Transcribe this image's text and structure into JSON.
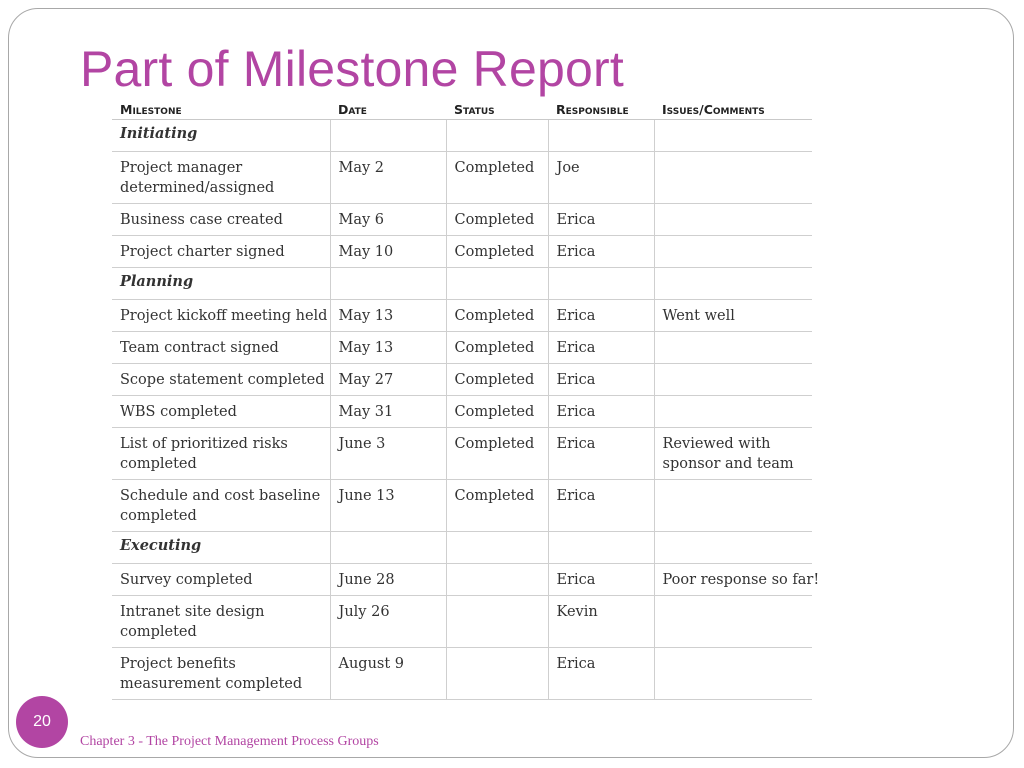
{
  "slide": {
    "title": "Part of Milestone Report",
    "page_number": "20",
    "footer": "Chapter 3 - The Project Management Process Groups"
  },
  "table": {
    "headers": [
      "Milestone",
      "Date",
      "Status",
      "Responsible",
      "Issues/Comments"
    ],
    "rows": [
      {
        "milestone": "Initiating",
        "date": "",
        "status": "",
        "responsible": "",
        "comments": ""
      },
      {
        "milestone": "Project manager\ndetermined/assigned",
        "date": "May 2",
        "status": "Completed",
        "responsible": "Joe",
        "comments": ""
      },
      {
        "milestone": "Business case created",
        "date": "May 6",
        "status": "Completed",
        "responsible": "Erica",
        "comments": ""
      },
      {
        "milestone": "Project charter signed",
        "date": "May 10",
        "status": "Completed",
        "responsible": "Erica",
        "comments": ""
      },
      {
        "milestone": "Planning",
        "date": "",
        "status": "",
        "responsible": "",
        "comments": ""
      },
      {
        "milestone": "Project kickoff meeting held",
        "date": "May 13",
        "status": "Completed",
        "responsible": "Erica",
        "comments": "Went well"
      },
      {
        "milestone": "Team contract signed",
        "date": "May 13",
        "status": "Completed",
        "responsible": "Erica",
        "comments": ""
      },
      {
        "milestone": "Scope statement completed",
        "date": "May 27",
        "status": "Completed",
        "responsible": "Erica",
        "comments": ""
      },
      {
        "milestone": "WBS completed",
        "date": "May 31",
        "status": "Completed",
        "responsible": "Erica",
        "comments": ""
      },
      {
        "milestone": "List of prioritized risks\ncompleted",
        "date": "June 3",
        "status": "Completed",
        "responsible": "Erica",
        "comments": "Reviewed with\nsponsor and team"
      },
      {
        "milestone": "Schedule and cost baseline\ncompleted",
        "date": "June 13",
        "status": "Completed",
        "responsible": "Erica",
        "comments": ""
      },
      {
        "milestone": "Executing",
        "date": "",
        "status": "",
        "responsible": "",
        "comments": ""
      },
      {
        "milestone": "Survey completed",
        "date": "June 28",
        "status": "",
        "responsible": "Erica",
        "comments": "Poor response so far!"
      },
      {
        "milestone": "Intranet site design\ncompleted",
        "date": "July 26",
        "status": "",
        "responsible": "Kevin",
        "comments": ""
      },
      {
        "milestone": "Project benefits\nmeasurement completed",
        "date": "August 9",
        "status": "",
        "responsible": "Erica",
        "comments": ""
      }
    ]
  }
}
